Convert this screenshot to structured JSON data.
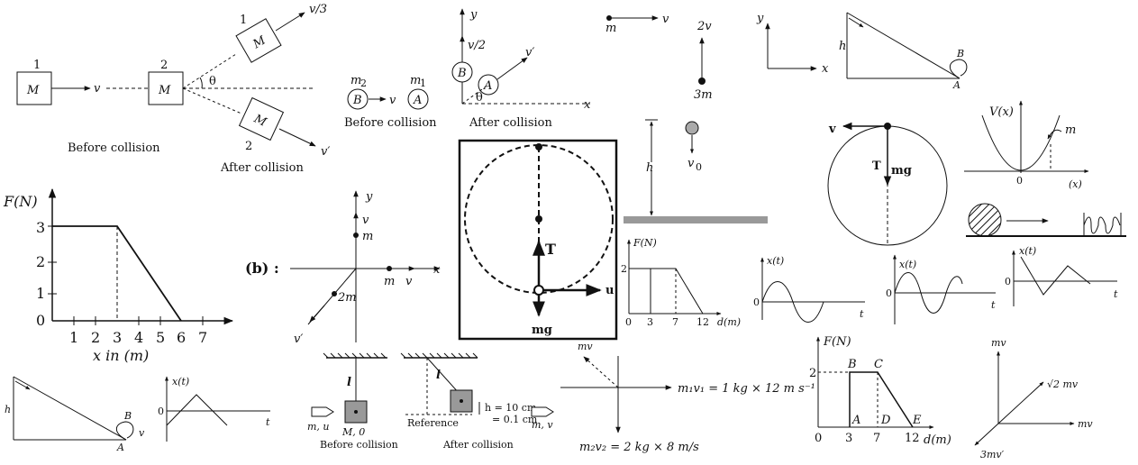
{
  "collision_1d": {
    "m1": "1",
    "M1": "M",
    "v": "v",
    "m2": "2",
    "M2": "M",
    "before": "Before collision",
    "top_label": "1",
    "top_M": "M",
    "top_v": "v/3",
    "bot_label": "2",
    "bot_M": "M",
    "bot_v": "v′",
    "theta": "θ",
    "after": "After collision"
  },
  "balls": {
    "m2": "m",
    "m2_sub": "2",
    "B": "B",
    "v": "v",
    "m1": "m",
    "m1_sub": "1",
    "A": "A",
    "before": "Before collision"
  },
  "after_balls": {
    "y": "y",
    "v2": "v/2",
    "B": "B",
    "A": "A",
    "vprime": "v′",
    "theta": "θ",
    "x": "x",
    "after": "After collision"
  },
  "split": {
    "m": "m",
    "v": "v",
    "v2": "2v",
    "m3": "3m"
  },
  "axes_xy": {
    "y": "y",
    "x": "x"
  },
  "incline_top": {
    "h": "h",
    "B": "B",
    "A": "A"
  },
  "drop": {
    "h": "h",
    "v0": "v",
    "v0_sub": "0"
  },
  "circle_right": {
    "v": "v",
    "T": "T",
    "mg": "mg"
  },
  "potential": {
    "V": "V(x)",
    "m": "m",
    "zero": "0",
    "x": "(x)"
  },
  "force_big": {
    "ylabel": "F(N)",
    "xlabel": "x in (m)",
    "yticks": [
      "0",
      "1",
      "2",
      "3"
    ],
    "xticks": [
      "1",
      "2",
      "3",
      "4",
      "5",
      "6",
      "7"
    ]
  },
  "explosion": {
    "b": "(b) :",
    "y": "y",
    "v_up": "v",
    "m_up": "m",
    "x": "x",
    "m_right": "m",
    "v_right": "v",
    "m2": "2m",
    "vprime": "v′"
  },
  "vertical_circle": {
    "T": "T",
    "u": "u",
    "mg": "mg"
  },
  "force_small": {
    "ylabel": "F(N)",
    "y2": "2",
    "zero": "0",
    "t3": "3",
    "t7": "7",
    "t12": "12",
    "xlabel": "d(m)"
  },
  "xt_graphs": [
    {
      "label": "x(t)",
      "zero": "0",
      "t": "t"
    },
    {
      "label": "x(t)",
      "zero": "0",
      "t": "t"
    },
    {
      "label": "x(t)",
      "zero": "0",
      "t": "t"
    },
    {
      "label": "x(t)",
      "zero": "0",
      "t": "t"
    }
  ],
  "incline_bottom": {
    "h": "h",
    "B": "B",
    "v": "v",
    "A": "A"
  },
  "pendulum": {
    "l1": "l",
    "mu": "m, u",
    "M0": "M, 0",
    "before": "Before collision",
    "l2": "l",
    "h": "h = 10 cm",
    "h2": "= 0.1 cm",
    "ref": "Reference",
    "mv": "m, v",
    "after": "After collision"
  },
  "momentum": {
    "mv": "mv",
    "p1": "m₁v₁ = 1 kg × 12 m s⁻¹",
    "p2": "m₂v₂ = 2 kg × 8 m/s"
  },
  "force_labeled": {
    "ylabel": "F(N)",
    "y2": "2",
    "B": "B",
    "C": "C",
    "A": "A",
    "D": "D",
    "E": "E",
    "zero": "0",
    "t3": "3",
    "t7": "7",
    "t12": "12",
    "xlabel": "d(m)"
  },
  "momentum_vec": {
    "mv_y": "mv",
    "sqrt": "√2 mv",
    "mv_x": "mv",
    "three": "3mv′"
  }
}
